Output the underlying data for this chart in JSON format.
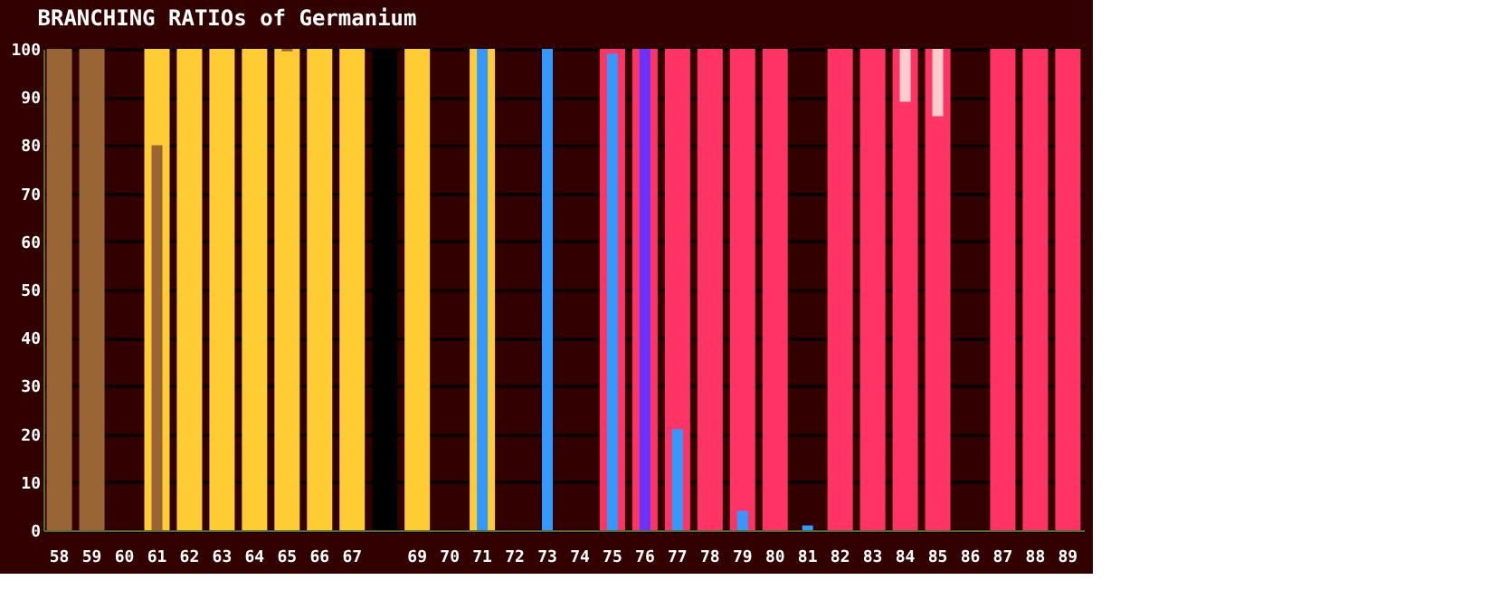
{
  "chart_data": {
    "type": "bar",
    "title": "BRANCHING RATIOs of Germanium",
    "categories": [
      "58",
      "59",
      "60",
      "61",
      "62",
      "63",
      "64",
      "65",
      "66",
      "67",
      null,
      "69",
      "70",
      "71",
      "72",
      "73",
      "74",
      "75",
      "76",
      "77",
      "78",
      "79",
      "80",
      "81",
      "82",
      "83",
      "84",
      "85",
      "86",
      "87",
      "88",
      "89"
    ],
    "series": [
      {
        "color": "#9a6534",
        "values": [
          100,
          100,
          null,
          null,
          null,
          null,
          null,
          null,
          null,
          null,
          null,
          null,
          null,
          null,
          null,
          null,
          null,
          null,
          null,
          null,
          null,
          null,
          null,
          null,
          null,
          null,
          null,
          null,
          null,
          null,
          null,
          null
        ]
      },
      {
        "color": "#ffcc33",
        "values": [
          null,
          null,
          null,
          100,
          100,
          100,
          100,
          100,
          100,
          100,
          null,
          100,
          null,
          100,
          null,
          null,
          null,
          null,
          null,
          null,
          null,
          null,
          null,
          null,
          null,
          null,
          null,
          null,
          null,
          null,
          null,
          null
        ]
      },
      {
        "color": "#000000",
        "values": [
          null,
          null,
          null,
          null,
          null,
          null,
          null,
          null,
          null,
          null,
          100,
          null,
          null,
          null,
          null,
          null,
          null,
          null,
          null,
          null,
          null,
          null,
          null,
          null,
          null,
          null,
          null,
          null,
          null,
          null,
          null,
          null
        ]
      },
      {
        "color": "#ff3366",
        "values": [
          null,
          null,
          null,
          null,
          null,
          null,
          null,
          null,
          null,
          null,
          null,
          null,
          null,
          null,
          null,
          null,
          null,
          100,
          100,
          100,
          100,
          100,
          100,
          null,
          100,
          100,
          100,
          100,
          null,
          100,
          100,
          100
        ]
      },
      {
        "color": "#9a6534",
        "base": [
          null,
          null,
          null,
          0,
          null,
          null,
          null,
          99.5,
          null,
          null,
          null,
          null,
          null,
          null,
          null,
          null,
          null,
          null,
          null,
          null,
          null,
          null,
          null,
          null,
          null,
          null,
          null,
          null,
          null,
          null,
          null,
          null
        ],
        "values": [
          null,
          null,
          null,
          80,
          null,
          null,
          null,
          0.5,
          null,
          null,
          null,
          null,
          null,
          null,
          null,
          null,
          null,
          null,
          null,
          null,
          null,
          null,
          null,
          null,
          null,
          null,
          null,
          null,
          null,
          null,
          null,
          null
        ]
      },
      {
        "color": "#3399ff",
        "values": [
          null,
          null,
          null,
          null,
          null,
          null,
          null,
          null,
          null,
          null,
          null,
          null,
          null,
          100,
          null,
          100,
          null,
          99,
          null,
          21,
          null,
          4,
          null,
          1,
          null,
          null,
          null,
          null,
          null,
          null,
          null,
          null
        ]
      },
      {
        "color": "#6633ff",
        "values": [
          null,
          null,
          null,
          null,
          null,
          null,
          null,
          null,
          null,
          null,
          null,
          null,
          null,
          null,
          null,
          null,
          null,
          null,
          100,
          null,
          null,
          null,
          null,
          null,
          null,
          null,
          null,
          null,
          null,
          null,
          null,
          null
        ]
      },
      {
        "color": "#ffcccc",
        "base": [
          null,
          null,
          null,
          null,
          null,
          null,
          null,
          null,
          null,
          null,
          null,
          null,
          null,
          null,
          null,
          null,
          null,
          null,
          null,
          null,
          null,
          null,
          null,
          null,
          null,
          null,
          89,
          86,
          null,
          null,
          null,
          null
        ],
        "values": [
          null,
          null,
          null,
          null,
          null,
          null,
          null,
          null,
          null,
          null,
          null,
          null,
          null,
          null,
          null,
          null,
          null,
          null,
          null,
          null,
          null,
          null,
          null,
          null,
          null,
          null,
          11,
          14,
          null,
          null,
          null,
          null
        ]
      }
    ],
    "ylim": [
      0,
      100
    ],
    "yticks": [
      0,
      10,
      20,
      30,
      40,
      50,
      60,
      70,
      80,
      90,
      100
    ],
    "grid": "y"
  }
}
